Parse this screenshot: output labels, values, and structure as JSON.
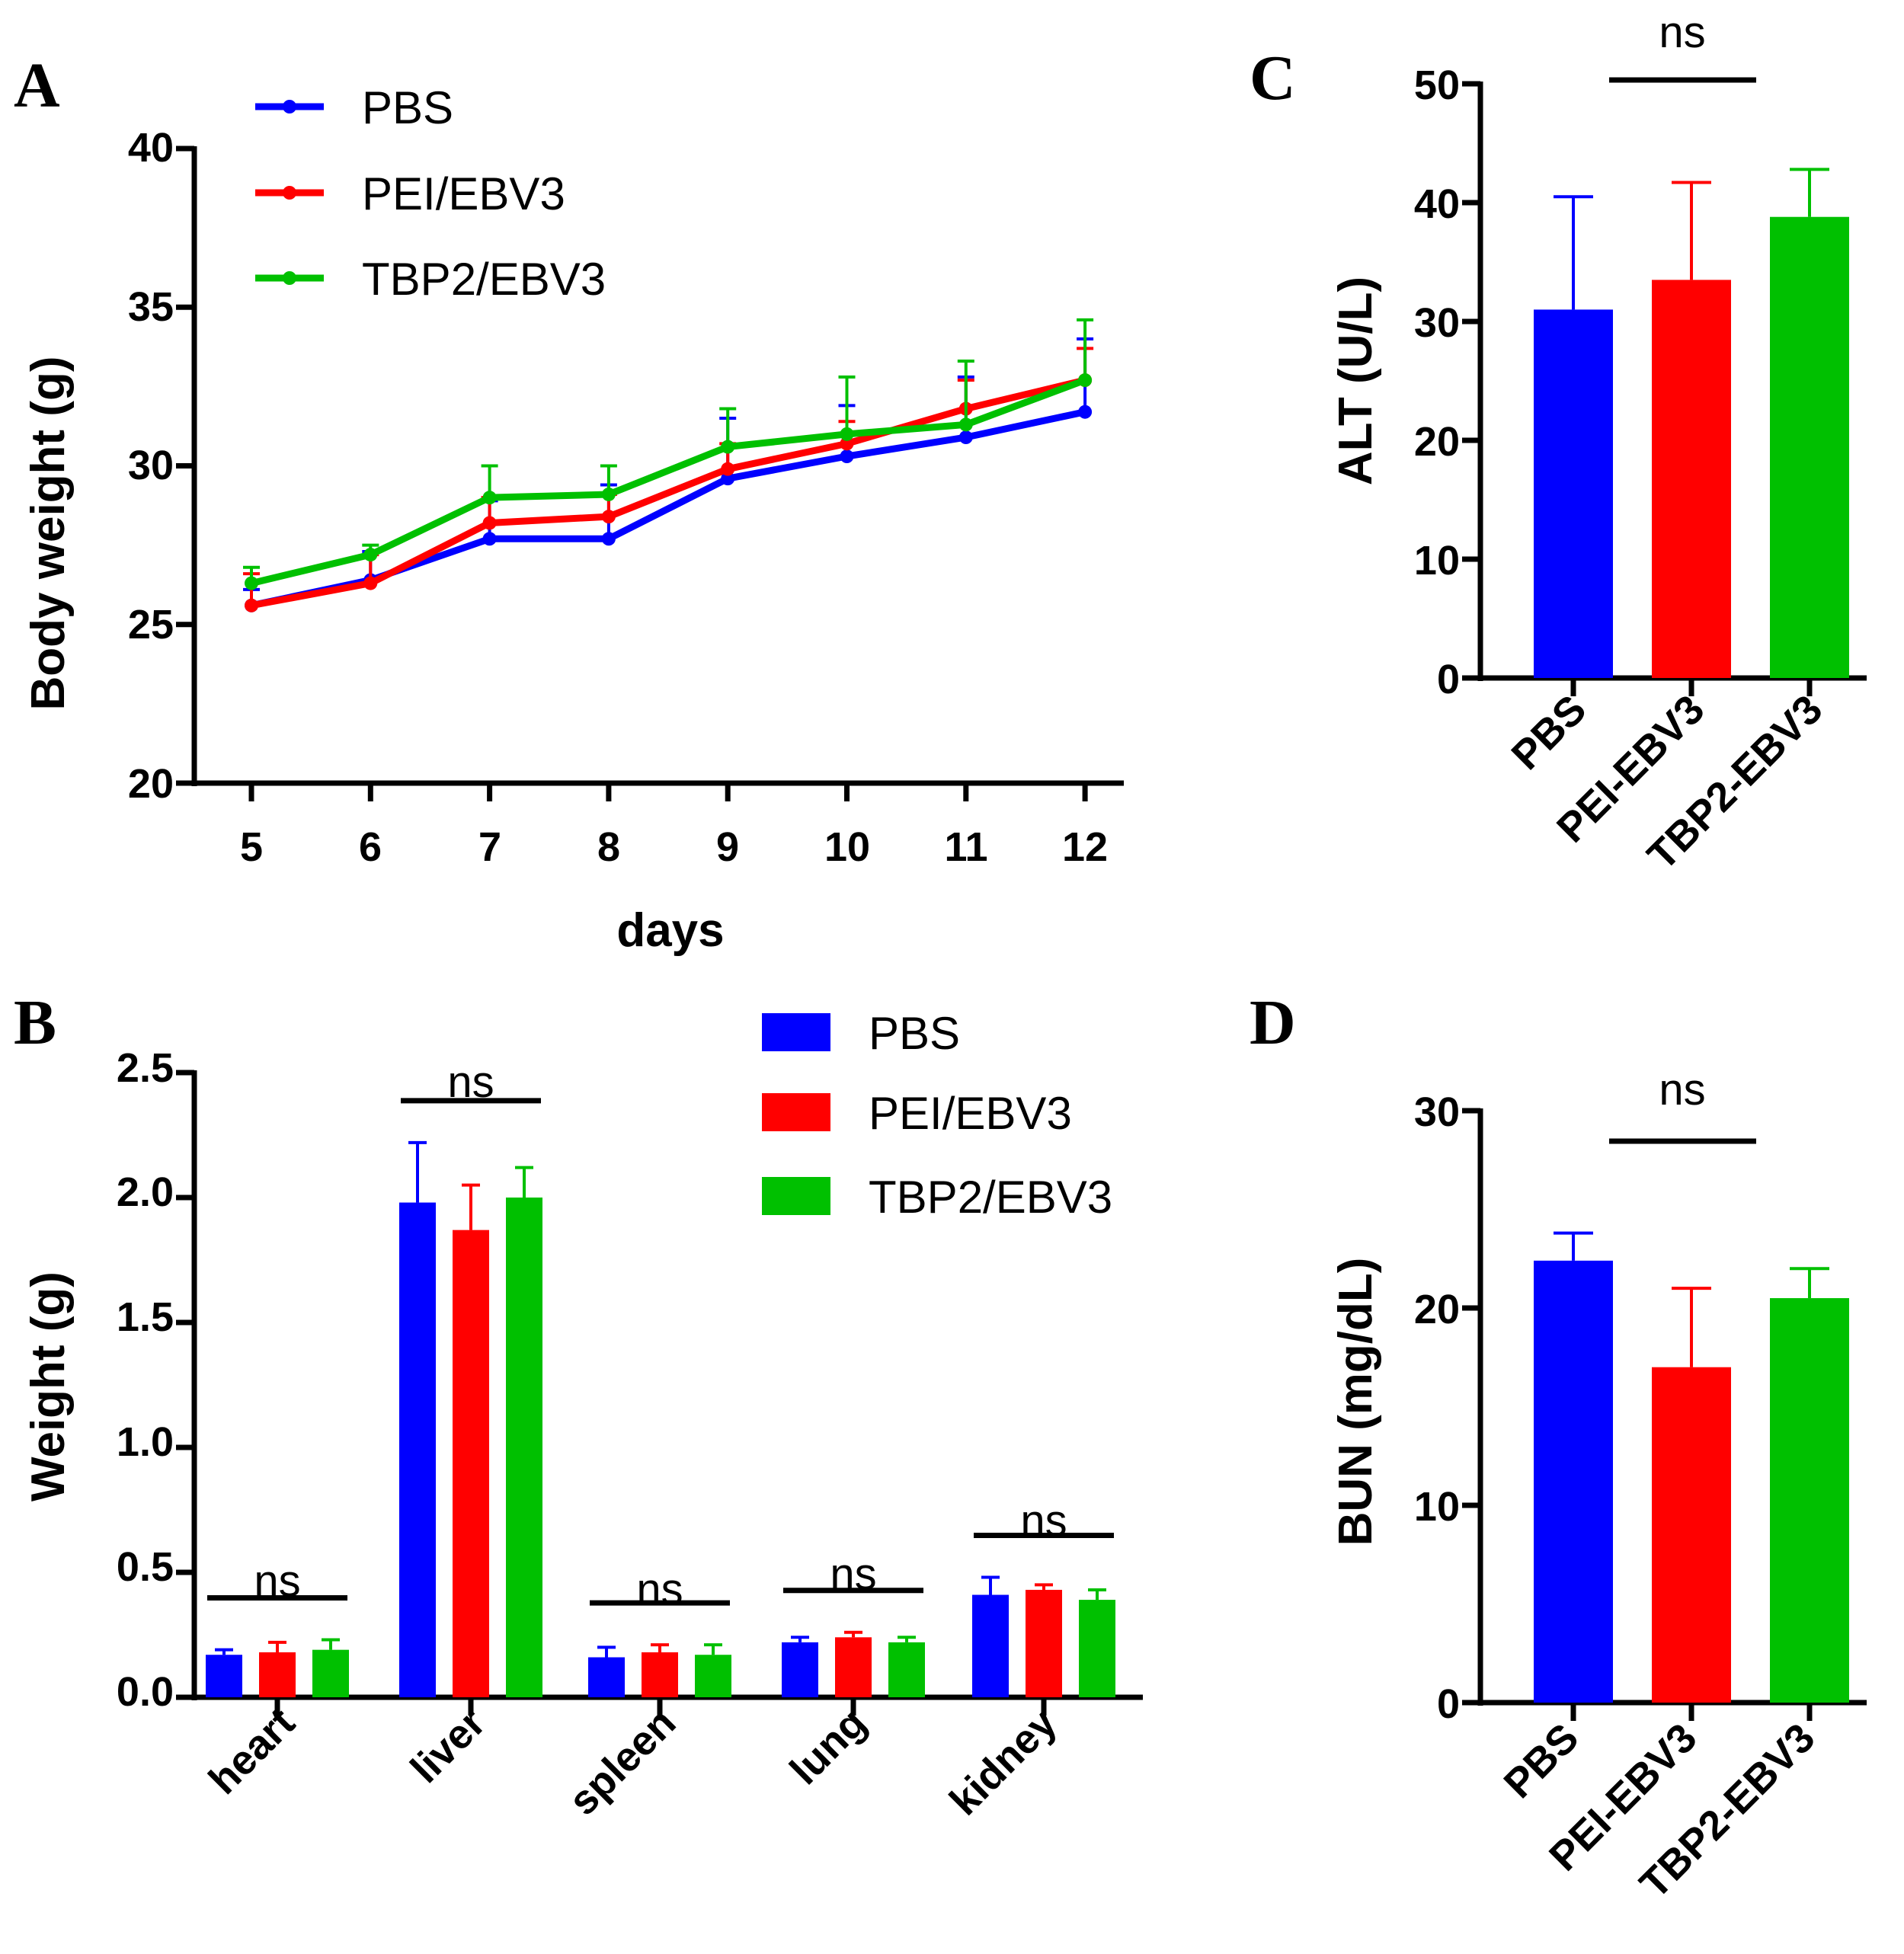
{
  "colors": {
    "PBS": "#0000ff",
    "PEI/EBV3": "#ff0000",
    "TBP2/EBV3": "#00c000"
  },
  "chart_data": [
    {
      "id": "A",
      "panel_label": "A",
      "type": "line",
      "xlabel": "days",
      "ylabel": "Body weight (g)",
      "x": [
        5,
        6,
        7,
        8,
        9,
        10,
        11,
        12
      ],
      "x_tick_labels": [
        "5",
        "6",
        "7",
        "8",
        "9",
        "10",
        "11",
        "12"
      ],
      "ylim": [
        20,
        40
      ],
      "y_ticks": [
        20,
        25,
        30,
        35,
        40
      ],
      "y_tick_labels": [
        "20",
        "25",
        "30",
        "35",
        "40"
      ],
      "legend": "top-left",
      "series": [
        {
          "name": "PBS",
          "values": [
            25.6,
            26.4,
            27.7,
            27.7,
            29.6,
            30.3,
            30.9,
            31.7
          ],
          "errors": [
            0.5,
            0.9,
            1.2,
            1.7,
            1.9,
            1.6,
            1.9,
            2.3
          ]
        },
        {
          "name": "PEI/EBV3",
          "values": [
            25.6,
            26.3,
            28.2,
            28.4,
            29.9,
            30.7,
            31.8,
            32.7
          ],
          "errors": [
            1.0,
            0.9,
            0.8,
            0.7,
            0.8,
            0.7,
            0.9,
            1.0
          ]
        },
        {
          "name": "TBP2/EBV3",
          "values": [
            26.3,
            27.2,
            29.0,
            29.1,
            30.6,
            31.0,
            31.3,
            32.7
          ],
          "errors": [
            0.5,
            0.3,
            1.0,
            0.9,
            1.2,
            1.8,
            2.0,
            1.9
          ]
        }
      ]
    },
    {
      "id": "B",
      "panel_label": "B",
      "type": "bar",
      "xlabel": "",
      "ylabel": "Weight (g)",
      "categories": [
        "heart",
        "liver",
        "spleen",
        "lung",
        "kidney"
      ],
      "ylim": [
        0,
        2.5
      ],
      "y_ticks": [
        0,
        0.5,
        1,
        1.5,
        2,
        2.5
      ],
      "y_tick_labels": [
        "0.0",
        "0.5",
        "1.0",
        "1.5",
        "2.0",
        "2.5"
      ],
      "legend": "top-right",
      "significance": [
        "ns",
        "ns",
        "ns",
        "ns",
        "ns"
      ],
      "series": [
        {
          "name": "PBS",
          "values": [
            0.17,
            1.98,
            0.16,
            0.22,
            0.41
          ],
          "errors": [
            0.02,
            0.24,
            0.04,
            0.02,
            0.07
          ]
        },
        {
          "name": "PEI/EBV3",
          "values": [
            0.18,
            1.87,
            0.18,
            0.24,
            0.43
          ],
          "errors": [
            0.04,
            0.18,
            0.03,
            0.02,
            0.02
          ]
        },
        {
          "name": "TBP2/EBV3",
          "values": [
            0.19,
            2.0,
            0.17,
            0.22,
            0.39
          ],
          "errors": [
            0.04,
            0.12,
            0.04,
            0.02,
            0.04
          ]
        }
      ]
    },
    {
      "id": "C",
      "panel_label": "C",
      "type": "bar",
      "xlabel": "",
      "ylabel": "ALT (U/L)",
      "categories": [
        "PBS",
        "PEI-EBV3",
        "TBP2-EBV3"
      ],
      "ylim": [
        0,
        50
      ],
      "y_ticks": [
        0,
        10,
        20,
        30,
        40,
        50
      ],
      "y_tick_labels": [
        "0",
        "10",
        "20",
        "30",
        "40",
        "50"
      ],
      "significance": "ns",
      "series": [
        {
          "name": "ALT",
          "values": [
            31.0,
            33.5,
            38.8
          ],
          "errors": [
            9.5,
            8.2,
            4.0
          ]
        }
      ]
    },
    {
      "id": "D",
      "panel_label": "D",
      "type": "bar",
      "xlabel": "",
      "ylabel": "BUN (mg/dL)",
      "categories": [
        "PBS",
        "PEI-EBV3",
        "TBP2-EBV3"
      ],
      "ylim": [
        0,
        30
      ],
      "y_ticks": [
        0,
        10,
        20,
        30
      ],
      "y_tick_labels": [
        "0",
        "10",
        "20",
        "30"
      ],
      "significance": "ns",
      "series": [
        {
          "name": "BUN",
          "values": [
            22.4,
            17.0,
            20.5
          ],
          "errors": [
            1.4,
            4.0,
            1.5
          ]
        }
      ]
    }
  ]
}
